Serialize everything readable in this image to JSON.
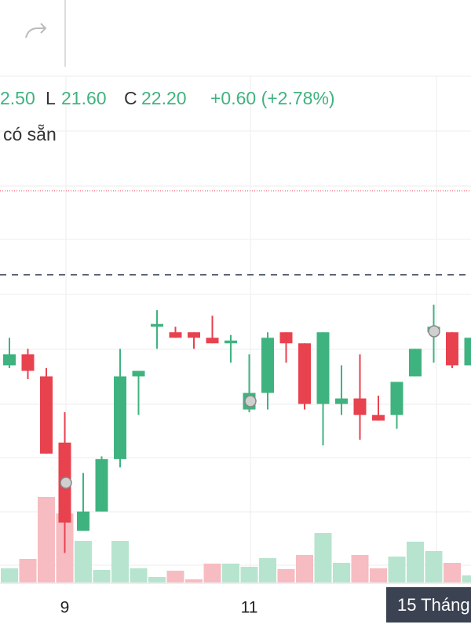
{
  "header": {
    "high": "2.50",
    "low_label": "L",
    "low": "21.60",
    "close_label": "C",
    "close": "22.20",
    "change": "+0.60 (+2.78%)",
    "note": "có sẵn"
  },
  "crosshair_label": "15 Tháng",
  "chart_data": {
    "type": "candlestick",
    "categories": [
      null,
      null,
      null,
      "9",
      null,
      null,
      null,
      null,
      null,
      null,
      null,
      null,
      null,
      "11",
      null,
      null,
      null,
      null,
      null,
      null,
      null,
      null,
      null,
      null,
      null,
      null
    ],
    "open": [
      21.87,
      21.91,
      21.83,
      21.59,
      21.27,
      21.34,
      21.53,
      21.83,
      22.01,
      21.99,
      21.99,
      21.97,
      21.95,
      21.71,
      21.77,
      21.99,
      21.95,
      21.73,
      21.73,
      21.75,
      21.69,
      21.69,
      21.83,
      21.99,
      21.99,
      21.87
    ],
    "high": [
      21.97,
      21.93,
      21.86,
      21.7,
      21.48,
      21.54,
      21.93,
      21.85,
      22.07,
      22.01,
      21.99,
      22.05,
      21.98,
      21.91,
      21.99,
      21.99,
      21.95,
      21.99,
      21.87,
      21.91,
      21.76,
      21.81,
      21.93,
      22.09,
      21.99,
      21.97
    ],
    "low": [
      21.86,
      21.82,
      21.55,
      21.19,
      21.27,
      21.34,
      21.5,
      21.69,
      21.93,
      21.97,
      21.93,
      21.95,
      21.88,
      21.7,
      21.71,
      21.88,
      21.71,
      21.58,
      21.69,
      21.6,
      21.67,
      21.64,
      21.83,
      21.88,
      21.86,
      21.87
    ],
    "close": [
      21.91,
      21.85,
      21.55,
      21.3,
      21.34,
      21.53,
      21.83,
      21.85,
      22.02,
      21.97,
      21.97,
      21.95,
      21.96,
      21.77,
      21.97,
      21.95,
      21.73,
      21.99,
      21.75,
      21.69,
      21.67,
      21.81,
      21.93,
      22.01,
      21.87,
      21.97
    ],
    "volume": [
      18,
      30,
      109,
      88,
      53,
      16,
      53,
      18,
      7,
      15,
      4,
      24,
      24,
      20,
      31,
      17,
      35,
      63,
      25,
      35,
      18,
      33,
      52,
      40,
      25,
      9
    ],
    "ylim": [
      21.06,
      22.91
    ],
    "volume_lim": [
      0,
      200
    ],
    "up_color": "#3fb37f",
    "down_color": "#e8424f",
    "up_volume_color": "#b7e4cf",
    "down_volume_color": "#f6bcc1"
  }
}
